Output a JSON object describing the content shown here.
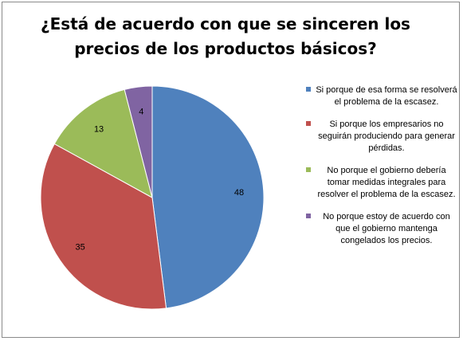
{
  "chart_data": {
    "type": "pie",
    "title": "¿Está de acuerdo con que se sinceren los precios de los productos básicos?",
    "legend_position": "right",
    "slices": [
      {
        "label": "Si porque de esa forma se resolverá el problema de la escasez.",
        "value": 48,
        "color": "#4f81bd"
      },
      {
        "label": "Si porque los empresarios no seguirán produciendo para generar pérdidas.",
        "value": 35,
        "color": "#c0504d"
      },
      {
        "label": "No porque el gobierno debería tomar medidas integrales para resolver el problema de la escasez.",
        "value": 13,
        "color": "#9bbb59"
      },
      {
        "label": "No porque estoy de acuerdo con que el gobierno mantenga congelados los precios.",
        "value": 4,
        "color": "#8064a2"
      }
    ]
  }
}
